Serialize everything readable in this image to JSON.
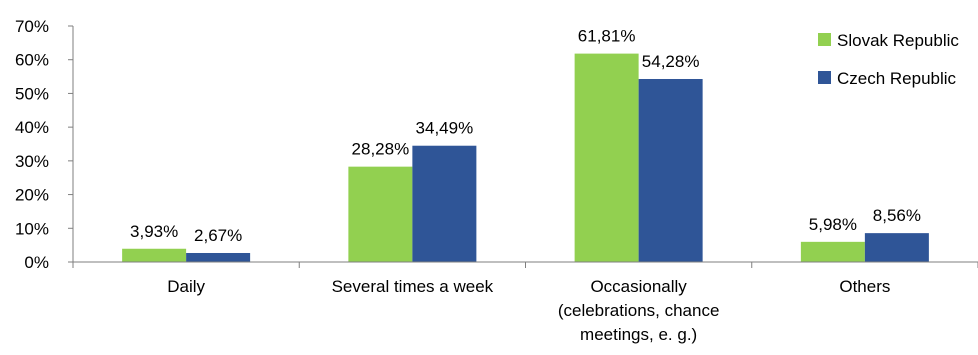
{
  "chart_data": {
    "type": "bar",
    "categories": [
      [
        "Daily"
      ],
      [
        "Several times a week"
      ],
      [
        "Occasionally",
        "(celebrations, chance",
        "meetings, e. g.)"
      ],
      [
        "Others"
      ]
    ],
    "series": [
      {
        "name": "Slovak Republic",
        "color": "#92d050",
        "values": [
          3.93,
          28.28,
          61.81,
          5.98
        ],
        "labels": [
          "3,93%",
          "28,28%",
          "61,81%",
          "5,98%"
        ]
      },
      {
        "name": "Czech Republic",
        "color": "#2f5597",
        "values": [
          2.67,
          34.49,
          54.28,
          8.56
        ],
        "labels": [
          "2,67%",
          "34,49%",
          "54,28%",
          "8,56%"
        ]
      }
    ],
    "ylim": [
      0,
      70
    ],
    "yticks": [
      0,
      10,
      20,
      30,
      40,
      50,
      60,
      70
    ],
    "ytick_labels": [
      "0%",
      "10%",
      "20%",
      "30%",
      "40%",
      "50%",
      "60%",
      "70%"
    ],
    "legend_position": "top-right",
    "grid": false,
    "title": "",
    "xlabel": "",
    "ylabel": ""
  }
}
